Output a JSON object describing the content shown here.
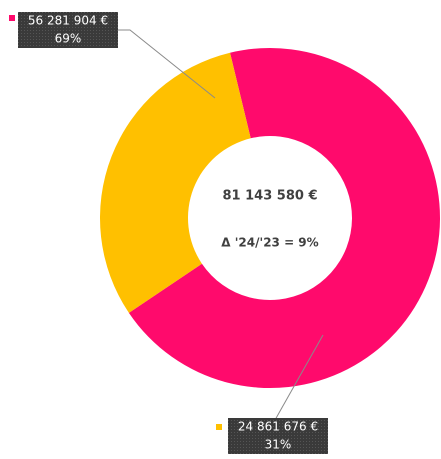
{
  "chart_data": {
    "type": "pie",
    "values": [
      56281904,
      24861676
    ],
    "value_labels": [
      "56 281 904 €",
      "24 861 676 €"
    ],
    "percentages": [
      69,
      31
    ],
    "percentage_labels": [
      "69%",
      "31%"
    ],
    "colors": [
      "#ff0a6c",
      "#ffc000"
    ],
    "total_label": "81 143 580 €",
    "annotation": "Δ '24/'23 = 9%"
  }
}
